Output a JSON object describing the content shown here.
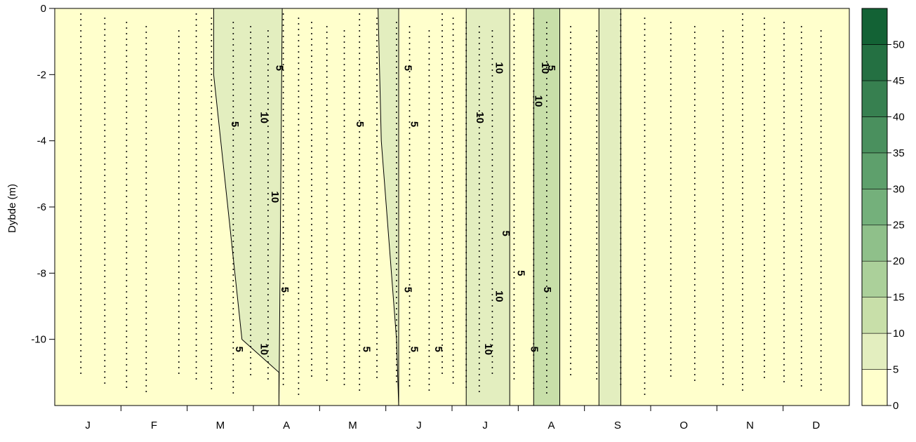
{
  "chart_data": {
    "type": "heatmap",
    "subtype": "depth-time contour",
    "ylabel": "Dybde (m)",
    "xlabel": "",
    "months": [
      "J",
      "F",
      "M",
      "A",
      "M",
      "J",
      "J",
      "A",
      "S",
      "O",
      "N",
      "D"
    ],
    "x_unit": "day of year",
    "xlim": [
      0,
      365
    ],
    "ylim": [
      -12,
      0
    ],
    "yticks": [
      0,
      -2,
      -4,
      -6,
      -8,
      -10
    ],
    "ytick_labels": [
      "0",
      "-2",
      "-4",
      "-6",
      "-8",
      "-10"
    ],
    "grid": false,
    "colorbar": {
      "position": "right",
      "levels": [
        0,
        5,
        10,
        15,
        20,
        25,
        30,
        35,
        40,
        45,
        50,
        55
      ],
      "tick_labels": [
        "0",
        "5",
        "10",
        "15",
        "20",
        "25",
        "30",
        "35",
        "40",
        "45",
        "50"
      ],
      "colors": [
        "#ffffcc",
        "#e3eebf",
        "#c8dfa9",
        "#abd09a",
        "#8fc08a",
        "#74b07b",
        "#5ea06c",
        "#4a905e",
        "#378050",
        "#247042",
        "#136235"
      ]
    },
    "regions": [
      {
        "level": 5,
        "x": [
          73,
          73,
          86,
          103,
          103,
          104.5
        ],
        "y": [
          0,
          -2,
          -10,
          -11,
          -12,
          0
        ],
        "color_index": 1
      },
      {
        "level": 5,
        "x": [
          148.5,
          150,
          157,
          158,
          158,
          148.5
        ],
        "y": [
          0,
          -4,
          -10,
          -12,
          0,
          0
        ],
        "color_index": 1
      },
      {
        "level": 5,
        "x": [
          189,
          189,
          209,
          209
        ],
        "y": [
          0,
          -12,
          -12,
          0
        ],
        "color_index": 1
      },
      {
        "level": 10,
        "x": [
          220,
          220,
          232,
          232
        ],
        "y": [
          0,
          -12,
          -12,
          0
        ],
        "color_index": 2
      },
      {
        "level": 5,
        "x": [
          250,
          250,
          260,
          260
        ],
        "y": [
          0,
          -12,
          -12,
          0
        ],
        "color_index": 1
      }
    ],
    "contour_labels": [
      {
        "text": "5",
        "x": 82.5,
        "y": -3.5
      },
      {
        "text": "5",
        "x": 84.5,
        "y": -10.3
      },
      {
        "text": "10",
        "x": 96,
        "y": -3.3
      },
      {
        "text": "10",
        "x": 101,
        "y": -5.7
      },
      {
        "text": "10",
        "x": 96,
        "y": -10.3
      },
      {
        "text": "5",
        "x": 103,
        "y": -1.8
      },
      {
        "text": "5",
        "x": 105.5,
        "y": -8.5
      },
      {
        "text": "5",
        "x": 140,
        "y": -3.5
      },
      {
        "text": "5",
        "x": 143,
        "y": -10.3
      },
      {
        "text": "5",
        "x": 162,
        "y": -1.8
      },
      {
        "text": "5",
        "x": 165,
        "y": -3.5
      },
      {
        "text": "5",
        "x": 162,
        "y": -8.5
      },
      {
        "text": "5",
        "x": 165,
        "y": -10.3
      },
      {
        "text": "5",
        "x": 176,
        "y": -10.3
      },
      {
        "text": "10",
        "x": 195,
        "y": -3.3
      },
      {
        "text": "10",
        "x": 204,
        "y": -1.8
      },
      {
        "text": "10",
        "x": 204,
        "y": -8.7
      },
      {
        "text": "10",
        "x": 199,
        "y": -10.3
      },
      {
        "text": "5",
        "x": 207,
        "y": -6.8
      },
      {
        "text": "5",
        "x": 214,
        "y": -8.0
      },
      {
        "text": "5",
        "x": 220,
        "y": -10.3
      },
      {
        "text": "5",
        "x": 226,
        "y": -8.5
      },
      {
        "text": "10",
        "x": 222,
        "y": -2.8
      },
      {
        "text": "10",
        "x": 225,
        "y": -1.8
      },
      {
        "text": "5",
        "x": 228,
        "y": -1.8
      }
    ],
    "sample_days": [
      12,
      23,
      33,
      42,
      57,
      65,
      72,
      82,
      90,
      98,
      105,
      112,
      118,
      125,
      133,
      140,
      148,
      157,
      163,
      172,
      178,
      183,
      189,
      195,
      201,
      211,
      220,
      226,
      237,
      249,
      260,
      271,
      283,
      294,
      307,
      316,
      326,
      335,
      343,
      352
    ]
  }
}
